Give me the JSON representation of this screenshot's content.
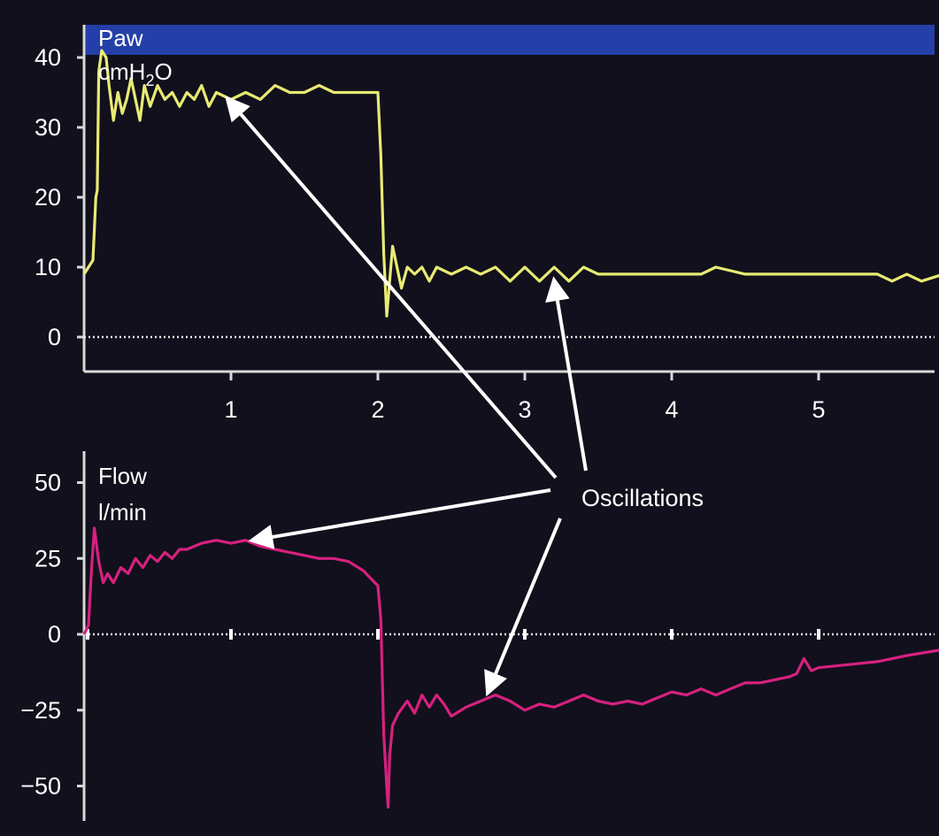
{
  "chart_data": [
    {
      "type": "line",
      "panel_label": "Paw",
      "unit_label": {
        "base": "cmH",
        "sub": "2",
        "tail": "O"
      },
      "yticks": [
        0,
        10,
        20,
        30,
        40
      ],
      "ytick_labels": [
        "0",
        "10",
        "20",
        "30",
        "40"
      ],
      "xticks": [
        1,
        2,
        3,
        4,
        5
      ],
      "xtick_labels": [
        "1",
        "2",
        "3",
        "4",
        "5"
      ],
      "xlim": [
        0,
        5.85
      ],
      "ylim": [
        -5,
        45
      ],
      "zero_line": "dotted",
      "header_band_color": "#243fa8",
      "series": [
        {
          "color": "#e8ea73",
          "points": [
            [
              0.0,
              9
            ],
            [
              0.03,
              10
            ],
            [
              0.06,
              11
            ],
            [
              0.08,
              20
            ],
            [
              0.09,
              21
            ],
            [
              0.1,
              38
            ],
            [
              0.12,
              41
            ],
            [
              0.15,
              40
            ],
            [
              0.17,
              36
            ],
            [
              0.2,
              31
            ],
            [
              0.23,
              35
            ],
            [
              0.26,
              32
            ],
            [
              0.29,
              34
            ],
            [
              0.32,
              37
            ],
            [
              0.35,
              34
            ],
            [
              0.38,
              31
            ],
            [
              0.41,
              36
            ],
            [
              0.45,
              33
            ],
            [
              0.5,
              36
            ],
            [
              0.55,
              34
            ],
            [
              0.6,
              35
            ],
            [
              0.65,
              33
            ],
            [
              0.7,
              35
            ],
            [
              0.75,
              34
            ],
            [
              0.8,
              36
            ],
            [
              0.85,
              33
            ],
            [
              0.9,
              35
            ],
            [
              1.0,
              34
            ],
            [
              1.1,
              35
            ],
            [
              1.2,
              34
            ],
            [
              1.3,
              36
            ],
            [
              1.4,
              35
            ],
            [
              1.5,
              35
            ],
            [
              1.6,
              36
            ],
            [
              1.7,
              35
            ],
            [
              1.8,
              35
            ],
            [
              1.9,
              35
            ],
            [
              2.0,
              35
            ],
            [
              2.02,
              26
            ],
            [
              2.04,
              12
            ],
            [
              2.06,
              3
            ],
            [
              2.08,
              8
            ],
            [
              2.1,
              13
            ],
            [
              2.13,
              10
            ],
            [
              2.16,
              7
            ],
            [
              2.2,
              10
            ],
            [
              2.25,
              9
            ],
            [
              2.3,
              10
            ],
            [
              2.35,
              8
            ],
            [
              2.4,
              10
            ],
            [
              2.5,
              9
            ],
            [
              2.6,
              10
            ],
            [
              2.7,
              9
            ],
            [
              2.8,
              10
            ],
            [
              2.9,
              8
            ],
            [
              3.0,
              10
            ],
            [
              3.1,
              8
            ],
            [
              3.2,
              10
            ],
            [
              3.3,
              8
            ],
            [
              3.4,
              10
            ],
            [
              3.5,
              9
            ],
            [
              3.6,
              9
            ],
            [
              3.8,
              9
            ],
            [
              4.0,
              9
            ],
            [
              4.2,
              9
            ],
            [
              4.3,
              10
            ],
            [
              4.5,
              9
            ],
            [
              4.6,
              9
            ],
            [
              4.8,
              9
            ],
            [
              5.0,
              9
            ],
            [
              5.2,
              9
            ],
            [
              5.4,
              9
            ],
            [
              5.5,
              8
            ],
            [
              5.6,
              9
            ],
            [
              5.7,
              8
            ],
            [
              5.85,
              9
            ]
          ]
        }
      ]
    },
    {
      "type": "line",
      "panel_label": "Flow",
      "unit_label": {
        "base": "l/min",
        "sub": "",
        "tail": ""
      },
      "yticks": [
        -50,
        -25,
        0,
        25,
        50
      ],
      "ytick_labels": [
        "−50",
        "−25",
        "0",
        "25",
        "50"
      ],
      "xticks": [
        1,
        2,
        3,
        4,
        5
      ],
      "xlim": [
        0,
        5.85
      ],
      "ylim": [
        -62,
        60
      ],
      "zero_line": "dotted",
      "series": [
        {
          "color": "#d6217e",
          "points": [
            [
              0.0,
              0
            ],
            [
              0.03,
              3
            ],
            [
              0.05,
              21
            ],
            [
              0.07,
              35
            ],
            [
              0.1,
              24
            ],
            [
              0.13,
              17
            ],
            [
              0.16,
              20
            ],
            [
              0.2,
              17
            ],
            [
              0.25,
              22
            ],
            [
              0.3,
              20
            ],
            [
              0.35,
              25
            ],
            [
              0.4,
              22
            ],
            [
              0.45,
              26
            ],
            [
              0.5,
              24
            ],
            [
              0.55,
              27
            ],
            [
              0.6,
              25
            ],
            [
              0.65,
              28
            ],
            [
              0.7,
              28
            ],
            [
              0.8,
              30
            ],
            [
              0.9,
              31
            ],
            [
              1.0,
              30
            ],
            [
              1.1,
              31
            ],
            [
              1.2,
              29
            ],
            [
              1.3,
              28
            ],
            [
              1.4,
              27
            ],
            [
              1.5,
              26
            ],
            [
              1.6,
              25
            ],
            [
              1.7,
              25
            ],
            [
              1.8,
              24
            ],
            [
              1.9,
              21
            ],
            [
              2.0,
              16
            ],
            [
              2.02,
              5
            ],
            [
              2.04,
              -33
            ],
            [
              2.06,
              -50
            ],
            [
              2.07,
              -57
            ],
            [
              2.08,
              -40
            ],
            [
              2.1,
              -30
            ],
            [
              2.14,
              -26
            ],
            [
              2.2,
              -22
            ],
            [
              2.25,
              -26
            ],
            [
              2.3,
              -20
            ],
            [
              2.35,
              -24
            ],
            [
              2.4,
              -20
            ],
            [
              2.45,
              -23
            ],
            [
              2.5,
              -27
            ],
            [
              2.6,
              -24
            ],
            [
              2.7,
              -22
            ],
            [
              2.8,
              -20
            ],
            [
              2.9,
              -22
            ],
            [
              3.0,
              -25
            ],
            [
              3.1,
              -23
            ],
            [
              3.2,
              -24
            ],
            [
              3.3,
              -22
            ],
            [
              3.4,
              -20
            ],
            [
              3.5,
              -22
            ],
            [
              3.6,
              -23
            ],
            [
              3.7,
              -22
            ],
            [
              3.8,
              -23
            ],
            [
              3.9,
              -21
            ],
            [
              4.0,
              -19
            ],
            [
              4.1,
              -20
            ],
            [
              4.2,
              -18
            ],
            [
              4.3,
              -20
            ],
            [
              4.4,
              -18
            ],
            [
              4.5,
              -16
            ],
            [
              4.6,
              -16
            ],
            [
              4.7,
              -15
            ],
            [
              4.8,
              -14
            ],
            [
              4.85,
              -13
            ],
            [
              4.9,
              -8
            ],
            [
              4.95,
              -12
            ],
            [
              5.0,
              -11
            ],
            [
              5.2,
              -10
            ],
            [
              5.4,
              -9
            ],
            [
              5.6,
              -7
            ],
            [
              5.85,
              -5
            ]
          ]
        }
      ]
    }
  ],
  "annotation": {
    "label": "Oscillations",
    "targets": [
      {
        "panel": 0,
        "x": 0.98,
        "y": 34
      },
      {
        "panel": 0,
        "x": 3.2,
        "y": 8
      },
      {
        "panel": 1,
        "x": 1.15,
        "y": 31
      },
      {
        "panel": 1,
        "x": 2.75,
        "y": -19
      }
    ]
  }
}
